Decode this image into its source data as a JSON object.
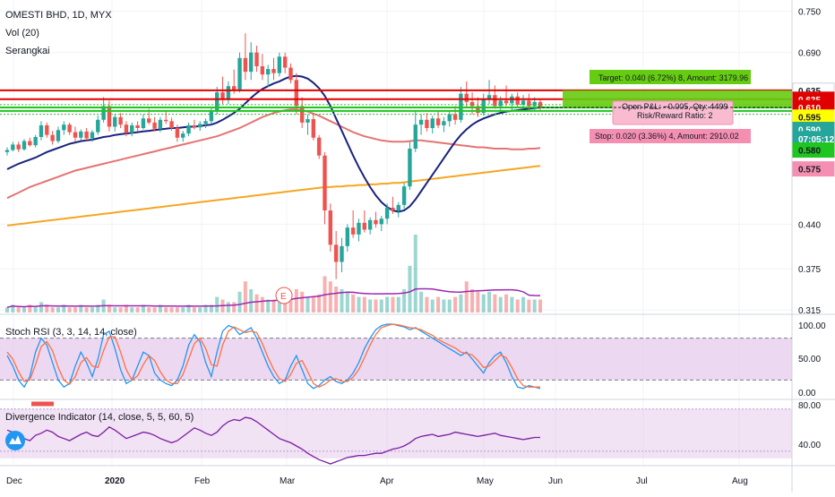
{
  "header": {
    "title": "OMESTI BHD, 1D, MYX",
    "indicator_vol": "Vol (20)",
    "indicator_type": "Serangkai"
  },
  "colors": {
    "up_candle": "#26a69a",
    "down_candle": "#ef5350",
    "ma20": "#1a237e",
    "ma50": "#e57373",
    "ma200": "#f5a623",
    "resistance": "#e00000",
    "support": "#21c521",
    "stoch_k": "#2196f3",
    "stoch_d": "#ff7043",
    "divergence": "#7b1fa2",
    "band_purple": "#e1bee7",
    "target_zone": "#66cc11",
    "stop_zone": "#f48fb1"
  },
  "trade_box": {
    "target_label": "Target: 0.040 (6.72%) 8, Amount: 3179.96",
    "open_pl_label": "Open P&L: −0.005, Qty: 4499",
    "risk_reward_label": "Risk/Reward Ratio: 2",
    "stop_label": "Stop: 0.020 (3.36%) 4, Amount: 2910.02"
  },
  "price_tags": [
    {
      "value": "0.635",
      "price": 0.635,
      "bg": "#ffffff",
      "fg": "#131722"
    },
    {
      "value": "0.635",
      "price": 0.622,
      "bg": "#e00000",
      "fg": "#ffffff"
    },
    {
      "value": "0.610",
      "price": 0.61,
      "bg": "#e00000",
      "fg": "#ffffff"
    },
    {
      "value": "0.595",
      "price": 0.596,
      "bg": "#ffff00",
      "fg": "#131722"
    },
    {
      "value": "0.590",
      "price": 0.578,
      "bg": "#26a69a",
      "fg": "#ffffff"
    },
    {
      "value": "07:05:12",
      "price": 0.5645,
      "bg": "#26a69a",
      "fg": "#ffffff"
    },
    {
      "value": "0.580",
      "price": 0.548,
      "bg": "#21c521",
      "fg": "#131722"
    },
    {
      "value": "0.575",
      "price": 0.5205,
      "bg": "#f48fb1",
      "fg": "#131722"
    }
  ],
  "earnings_marker": "E",
  "stoch_rsi": {
    "label": "Stoch RSI (3, 3, 14, 14, close)",
    "axis": [
      "100.00",
      "50.00",
      "0.00"
    ]
  },
  "divergence": {
    "label": "Divergence Indicator (14, close, 5, 5, 60, 5)",
    "axis": [
      "80.00",
      "40.00"
    ]
  },
  "chart_data": {
    "type": "candlestick",
    "title": "OMESTI BHD, 1D, MYX",
    "price_axis_ticks": [
      "0.750",
      "0.690",
      "0.635",
      "0.440",
      "0.375",
      "0.315"
    ],
    "time_axis_ticks": [
      "Dec",
      "2020",
      "Feb",
      "Mar",
      "Apr",
      "May",
      "Jun",
      "Jul",
      "Aug"
    ],
    "ylim": [
      0.31,
      0.76
    ],
    "resistance_levels": [
      0.635,
      0.622
    ],
    "support_levels": [
      0.61,
      0.605
    ],
    "candles": [
      [
        0.545,
        0.552,
        0.54,
        0.548
      ],
      [
        0.548,
        0.56,
        0.546,
        0.556
      ],
      [
        0.556,
        0.56,
        0.545,
        0.549
      ],
      [
        0.549,
        0.564,
        0.547,
        0.561
      ],
      [
        0.561,
        0.566,
        0.553,
        0.555
      ],
      [
        0.555,
        0.57,
        0.552,
        0.567
      ],
      [
        0.567,
        0.59,
        0.562,
        0.584
      ],
      [
        0.584,
        0.588,
        0.566,
        0.57
      ],
      [
        0.57,
        0.576,
        0.556,
        0.561
      ],
      [
        0.561,
        0.582,
        0.558,
        0.577
      ],
      [
        0.577,
        0.59,
        0.57,
        0.585
      ],
      [
        0.585,
        0.588,
        0.57,
        0.574
      ],
      [
        0.574,
        0.582,
        0.56,
        0.566
      ],
      [
        0.566,
        0.578,
        0.562,
        0.575
      ],
      [
        0.575,
        0.58,
        0.562,
        0.565
      ],
      [
        0.565,
        0.577,
        0.56,
        0.574
      ],
      [
        0.574,
        0.598,
        0.57,
        0.592
      ],
      [
        0.592,
        0.625,
        0.588,
        0.612
      ],
      [
        0.612,
        0.62,
        0.575,
        0.582
      ],
      [
        0.582,
        0.6,
        0.575,
        0.596
      ],
      [
        0.596,
        0.602,
        0.58,
        0.585
      ],
      [
        0.585,
        0.59,
        0.568,
        0.573
      ],
      [
        0.573,
        0.588,
        0.568,
        0.584
      ],
      [
        0.584,
        0.59,
        0.575,
        0.58
      ],
      [
        0.58,
        0.6,
        0.578,
        0.594
      ],
      [
        0.594,
        0.608,
        0.585,
        0.588
      ],
      [
        0.588,
        0.596,
        0.575,
        0.579
      ],
      [
        0.579,
        0.596,
        0.574,
        0.592
      ],
      [
        0.592,
        0.606,
        0.586,
        0.59
      ],
      [
        0.59,
        0.595,
        0.576,
        0.58
      ],
      [
        0.58,
        0.585,
        0.56,
        0.566
      ],
      [
        0.566,
        0.576,
        0.56,
        0.572
      ],
      [
        0.572,
        0.588,
        0.568,
        0.584
      ],
      [
        0.584,
        0.592,
        0.578,
        0.581
      ],
      [
        0.581,
        0.59,
        0.576,
        0.586
      ],
      [
        0.586,
        0.594,
        0.58,
        0.59
      ],
      [
        0.59,
        0.61,
        0.586,
        0.604
      ],
      [
        0.604,
        0.64,
        0.6,
        0.632
      ],
      [
        0.632,
        0.655,
        0.615,
        0.622
      ],
      [
        0.622,
        0.648,
        0.615,
        0.641
      ],
      [
        0.641,
        0.665,
        0.63,
        0.636
      ],
      [
        0.636,
        0.69,
        0.632,
        0.682
      ],
      [
        0.682,
        0.718,
        0.65,
        0.662
      ],
      [
        0.662,
        0.705,
        0.65,
        0.69
      ],
      [
        0.69,
        0.7,
        0.662,
        0.67
      ],
      [
        0.67,
        0.688,
        0.65,
        0.658
      ],
      [
        0.658,
        0.672,
        0.64,
        0.666
      ],
      [
        0.666,
        0.682,
        0.65,
        0.66
      ],
      [
        0.66,
        0.69,
        0.655,
        0.684
      ],
      [
        0.684,
        0.69,
        0.66,
        0.668
      ],
      [
        0.668,
        0.674,
        0.645,
        0.65
      ],
      [
        0.65,
        0.66,
        0.6,
        0.612
      ],
      [
        0.612,
        0.625,
        0.58,
        0.588
      ],
      [
        0.588,
        0.6,
        0.57,
        0.593
      ],
      [
        0.593,
        0.6,
        0.562,
        0.566
      ],
      [
        0.566,
        0.57,
        0.535,
        0.54
      ],
      [
        0.54,
        0.545,
        0.44,
        0.46
      ],
      [
        0.46,
        0.47,
        0.4,
        0.41
      ],
      [
        0.41,
        0.43,
        0.36,
        0.385
      ],
      [
        0.385,
        0.42,
        0.37,
        0.408
      ],
      [
        0.408,
        0.44,
        0.4,
        0.435
      ],
      [
        0.435,
        0.46,
        0.42,
        0.425
      ],
      [
        0.425,
        0.448,
        0.415,
        0.442
      ],
      [
        0.442,
        0.46,
        0.428,
        0.432
      ],
      [
        0.432,
        0.45,
        0.425,
        0.446
      ],
      [
        0.446,
        0.458,
        0.435,
        0.44
      ],
      [
        0.44,
        0.452,
        0.43,
        0.448
      ],
      [
        0.448,
        0.47,
        0.44,
        0.464
      ],
      [
        0.464,
        0.48,
        0.455,
        0.46
      ],
      [
        0.46,
        0.472,
        0.45,
        0.468
      ],
      [
        0.468,
        0.5,
        0.462,
        0.495
      ],
      [
        0.495,
        0.56,
        0.49,
        0.55
      ],
      [
        0.55,
        0.605,
        0.545,
        0.585
      ],
      [
        0.585,
        0.6,
        0.57,
        0.592
      ],
      [
        0.592,
        0.602,
        0.575,
        0.58
      ],
      [
        0.58,
        0.598,
        0.572,
        0.594
      ],
      [
        0.594,
        0.606,
        0.58,
        0.584
      ],
      [
        0.584,
        0.596,
        0.574,
        0.59
      ],
      [
        0.59,
        0.605,
        0.582,
        0.6
      ],
      [
        0.6,
        0.612,
        0.585,
        0.592
      ],
      [
        0.592,
        0.64,
        0.588,
        0.63
      ],
      [
        0.63,
        0.648,
        0.61,
        0.618
      ],
      [
        0.618,
        0.632,
        0.6,
        0.612
      ],
      [
        0.612,
        0.625,
        0.596,
        0.602
      ],
      [
        0.602,
        0.63,
        0.598,
        0.622
      ],
      [
        0.622,
        0.65,
        0.615,
        0.628
      ],
      [
        0.628,
        0.642,
        0.608,
        0.612
      ],
      [
        0.612,
        0.626,
        0.605,
        0.62
      ],
      [
        0.62,
        0.642,
        0.612,
        0.616
      ],
      [
        0.616,
        0.63,
        0.605,
        0.626
      ],
      [
        0.626,
        0.632,
        0.61,
        0.614
      ],
      [
        0.614,
        0.628,
        0.608,
        0.62
      ],
      [
        0.62,
        0.63,
        0.606,
        0.612
      ],
      [
        0.612,
        0.625,
        0.605,
        0.618
      ],
      [
        0.618,
        0.622,
        0.604,
        0.61
      ]
    ],
    "volume": [
      2,
      3,
      2,
      2,
      3,
      2,
      4,
      3,
      2,
      2,
      3,
      2,
      2,
      3,
      2,
      2,
      3,
      5,
      3,
      2,
      2,
      3,
      2,
      2,
      3,
      2,
      2,
      3,
      2,
      2,
      2,
      2,
      3,
      2,
      2,
      3,
      3,
      6,
      5,
      4,
      4,
      8,
      12,
      9,
      7,
      6,
      5,
      5,
      6,
      5,
      5,
      9,
      8,
      6,
      6,
      7,
      14,
      12,
      10,
      9,
      8,
      7,
      6,
      6,
      5,
      5,
      5,
      6,
      6,
      6,
      9,
      18,
      30,
      8,
      6,
      5,
      6,
      5,
      5,
      6,
      7,
      12,
      9,
      8,
      7,
      8,
      7,
      6,
      7,
      6,
      5,
      6,
      5,
      5,
      5
    ],
    "ma20": [
      0.52,
      0.524,
      0.528,
      0.531,
      0.534,
      0.537,
      0.541,
      0.545,
      0.548,
      0.551,
      0.554,
      0.557,
      0.559,
      0.561,
      0.562,
      0.563,
      0.565,
      0.567,
      0.568,
      0.57,
      0.571,
      0.572,
      0.573,
      0.574,
      0.575,
      0.576,
      0.577,
      0.578,
      0.579,
      0.58,
      0.58,
      0.581,
      0.582,
      0.582,
      0.583,
      0.584,
      0.585,
      0.588,
      0.592,
      0.597,
      0.602,
      0.608,
      0.616,
      0.624,
      0.631,
      0.637,
      0.641,
      0.645,
      0.648,
      0.652,
      0.655,
      0.656,
      0.655,
      0.652,
      0.646,
      0.638,
      0.627,
      0.612,
      0.594,
      0.576,
      0.558,
      0.54,
      0.523,
      0.508,
      0.494,
      0.482,
      0.472,
      0.465,
      0.46,
      0.458,
      0.46,
      0.466,
      0.476,
      0.488,
      0.5,
      0.512,
      0.524,
      0.536,
      0.548,
      0.56,
      0.57,
      0.578,
      0.585,
      0.59,
      0.594,
      0.597,
      0.6,
      0.602,
      0.604,
      0.605,
      0.606,
      0.607,
      0.608,
      0.609,
      0.61
    ],
    "ma50": [
      0.478,
      0.482,
      0.486,
      0.49,
      0.494,
      0.497,
      0.5,
      0.503,
      0.506,
      0.509,
      0.512,
      0.515,
      0.518,
      0.52,
      0.522,
      0.524,
      0.526,
      0.528,
      0.53,
      0.532,
      0.534,
      0.536,
      0.538,
      0.54,
      0.542,
      0.544,
      0.546,
      0.548,
      0.55,
      0.552,
      0.554,
      0.556,
      0.558,
      0.56,
      0.562,
      0.564,
      0.566,
      0.568,
      0.571,
      0.574,
      0.577,
      0.58,
      0.584,
      0.588,
      0.592,
      0.596,
      0.599,
      0.602,
      0.604,
      0.606,
      0.607,
      0.607,
      0.606,
      0.604,
      0.601,
      0.598,
      0.594,
      0.59,
      0.586,
      0.582,
      0.578,
      0.574,
      0.571,
      0.568,
      0.566,
      0.564,
      0.562,
      0.561,
      0.56,
      0.56,
      0.56,
      0.561,
      0.562,
      0.562,
      0.561,
      0.56,
      0.559,
      0.558,
      0.557,
      0.556,
      0.555,
      0.554,
      0.553,
      0.552,
      0.552,
      0.551,
      0.55,
      0.55,
      0.55,
      0.549,
      0.549,
      0.549,
      0.55,
      0.55,
      0.551
    ],
    "ma200": [
      0.438,
      0.439,
      0.44,
      0.441,
      0.442,
      0.443,
      0.444,
      0.445,
      0.446,
      0.447,
      0.448,
      0.449,
      0.45,
      0.451,
      0.452,
      0.453,
      0.454,
      0.455,
      0.456,
      0.457,
      0.458,
      0.459,
      0.46,
      0.461,
      0.462,
      0.463,
      0.464,
      0.465,
      0.466,
      0.467,
      0.468,
      0.469,
      0.47,
      0.471,
      0.472,
      0.473,
      0.474,
      0.475,
      0.476,
      0.477,
      0.478,
      0.479,
      0.48,
      0.481,
      0.482,
      0.483,
      0.484,
      0.485,
      0.486,
      0.487,
      0.488,
      0.489,
      0.49,
      0.491,
      0.492,
      0.493,
      0.494,
      0.494,
      0.495,
      0.495,
      0.496,
      0.496,
      0.497,
      0.497,
      0.498,
      0.498,
      0.499,
      0.499,
      0.5,
      0.5,
      0.501,
      0.502,
      0.503,
      0.504,
      0.505,
      0.506,
      0.507,
      0.508,
      0.509,
      0.51,
      0.511,
      0.512,
      0.513,
      0.514,
      0.515,
      0.516,
      0.517,
      0.518,
      0.519,
      0.52,
      0.521,
      0.522,
      0.523,
      0.524,
      0.525
    ],
    "stoch_k": [
      55,
      40,
      20,
      10,
      25,
      60,
      80,
      70,
      45,
      20,
      10,
      15,
      40,
      60,
      45,
      25,
      50,
      85,
      90,
      65,
      35,
      15,
      20,
      40,
      60,
      55,
      30,
      20,
      15,
      12,
      20,
      40,
      70,
      85,
      75,
      45,
      25,
      60,
      90,
      98,
      95,
      85,
      90,
      95,
      80,
      60,
      40,
      25,
      15,
      20,
      40,
      55,
      35,
      15,
      8,
      12,
      20,
      25,
      18,
      15,
      20,
      30,
      45,
      65,
      80,
      92,
      98,
      100,
      100,
      98,
      96,
      92,
      95,
      90,
      85,
      80,
      75,
      70,
      65,
      60,
      55,
      60,
      50,
      40,
      30,
      45,
      55,
      60,
      45,
      25,
      10,
      8,
      12,
      10,
      8
    ],
    "stoch_d": [
      60,
      50,
      32,
      18,
      20,
      42,
      68,
      75,
      62,
      38,
      20,
      14,
      25,
      45,
      52,
      40,
      38,
      62,
      82,
      82,
      60,
      35,
      20,
      26,
      42,
      55,
      48,
      32,
      20,
      15,
      15,
      28,
      50,
      72,
      80,
      65,
      42,
      40,
      70,
      90,
      96,
      92,
      88,
      90,
      88,
      72,
      52,
      35,
      22,
      18,
      28,
      44,
      48,
      32,
      15,
      10,
      14,
      20,
      22,
      18,
      18,
      24,
      35,
      52,
      70,
      85,
      95,
      98,
      100,
      99,
      97,
      95,
      94,
      92,
      88,
      84,
      78,
      74,
      70,
      66,
      60,
      58,
      56,
      48,
      38,
      40,
      48,
      56,
      52,
      38,
      22,
      12,
      10,
      10,
      10
    ],
    "divergence_values": [
      60,
      58,
      55,
      52,
      50,
      55,
      57,
      60,
      58,
      54,
      52,
      50,
      53,
      56,
      58,
      55,
      54,
      58,
      63,
      60,
      56,
      52,
      54,
      56,
      58,
      57,
      55,
      52,
      50,
      48,
      50,
      54,
      58,
      62,
      60,
      57,
      55,
      58,
      64,
      68,
      70,
      69,
      72,
      71,
      68,
      64,
      60,
      56,
      52,
      50,
      48,
      45,
      42,
      38,
      35,
      32,
      30,
      28,
      30,
      32,
      34,
      35,
      36,
      36,
      37,
      38,
      38,
      40,
      42,
      43,
      45,
      48,
      52,
      54,
      55,
      56,
      54,
      55,
      56,
      58,
      57,
      56,
      55,
      54,
      55,
      56,
      57,
      55,
      54,
      53,
      52,
      51,
      52,
      53,
      53
    ],
    "stoch_axis": [
      0,
      100
    ],
    "divergence_axis": [
      28,
      84
    ]
  }
}
